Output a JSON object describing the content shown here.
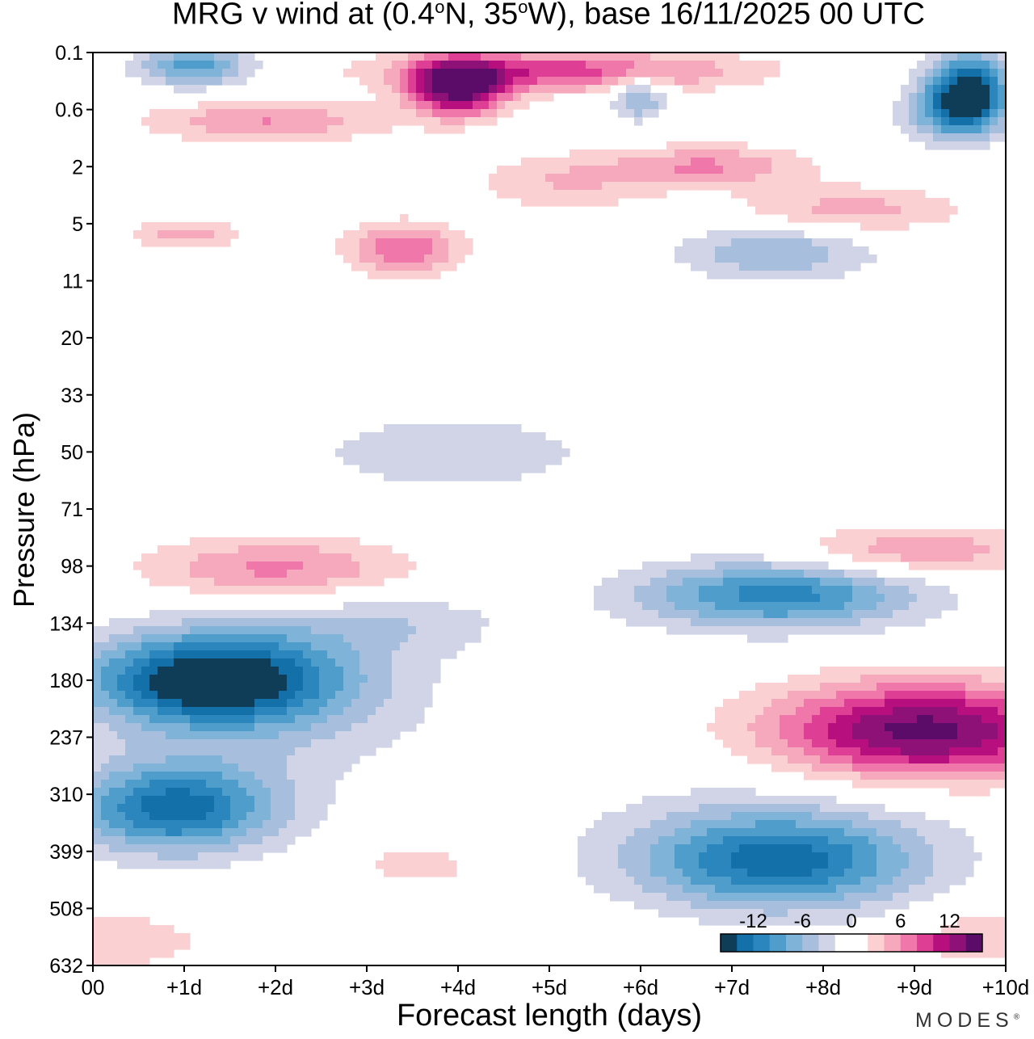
{
  "title": {
    "prefix": "MRG v wind at (0.4",
    "deg1": "o",
    "mid": "N, 35",
    "deg2": "o",
    "suffix": "W),  base 16/11/2025  00 UTC"
  },
  "brand": {
    "text": "MODES",
    "mark": "®"
  },
  "chart_data": {
    "type": "heatmap",
    "xlabel": "Forecast length (days)",
    "ylabel": "Pressure (hPa)",
    "x_ticks": [
      "00",
      "+1d",
      "+2d",
      "+3d",
      "+4d",
      "+5d",
      "+6d",
      "+7d",
      "+8d",
      "+9d",
      "+10d"
    ],
    "y_ticks": [
      "0.1",
      "0.6",
      "2",
      "5",
      "11",
      "20",
      "33",
      "50",
      "71",
      "98",
      "134",
      "180",
      "237",
      "310",
      "399",
      "508",
      "632"
    ],
    "xlim": [
      0,
      10
    ],
    "colorbar": {
      "tick_labels": [
        "-12",
        "-6",
        "0",
        "6",
        "12"
      ],
      "colors": [
        "#0f3c57",
        "#1470a8",
        "#2b86be",
        "#4f9dcb",
        "#7fb3d8",
        "#a7bfdc",
        "#d1d4e7",
        "#ffffff",
        "#ffffff",
        "#fad0d2",
        "#f6a9bd",
        "#ef77aa",
        "#de3e94",
        "#b80f7f",
        "#8e1177",
        "#5b0c68"
      ],
      "levels": [
        -16,
        -14,
        -12,
        -10,
        -8,
        -6,
        -4,
        -2,
        0,
        2,
        4,
        6,
        8,
        10,
        12,
        14,
        16
      ]
    },
    "features": [
      {
        "name": "upper-left negative core",
        "x": 1.3,
        "pressure": 180,
        "v": -15
      },
      {
        "name": "lower-left negative core",
        "x": 0.9,
        "pressure": 330,
        "v": -13
      },
      {
        "name": "upper-right positive core",
        "x": 9.1,
        "pressure": 230,
        "v": 15
      },
      {
        "name": "mid-right negative core",
        "x": 7.5,
        "pressure": 115,
        "v": -11
      },
      {
        "name": "lower-right negative core",
        "x": 7.5,
        "pressure": 420,
        "v": -10
      },
      {
        "name": "positive band upper-left",
        "x": 2.0,
        "pressure": 100,
        "v": 7
      },
      {
        "name": "positive band upper-right",
        "x": 9.0,
        "pressure": 90,
        "v": 6
      },
      {
        "name": "stratospheric positive core",
        "x": 4.0,
        "pressure": 0.3,
        "v": 15
      },
      {
        "name": "stratospheric negative core",
        "x": 9.6,
        "pressure": 0.3,
        "v": -14
      }
    ]
  }
}
